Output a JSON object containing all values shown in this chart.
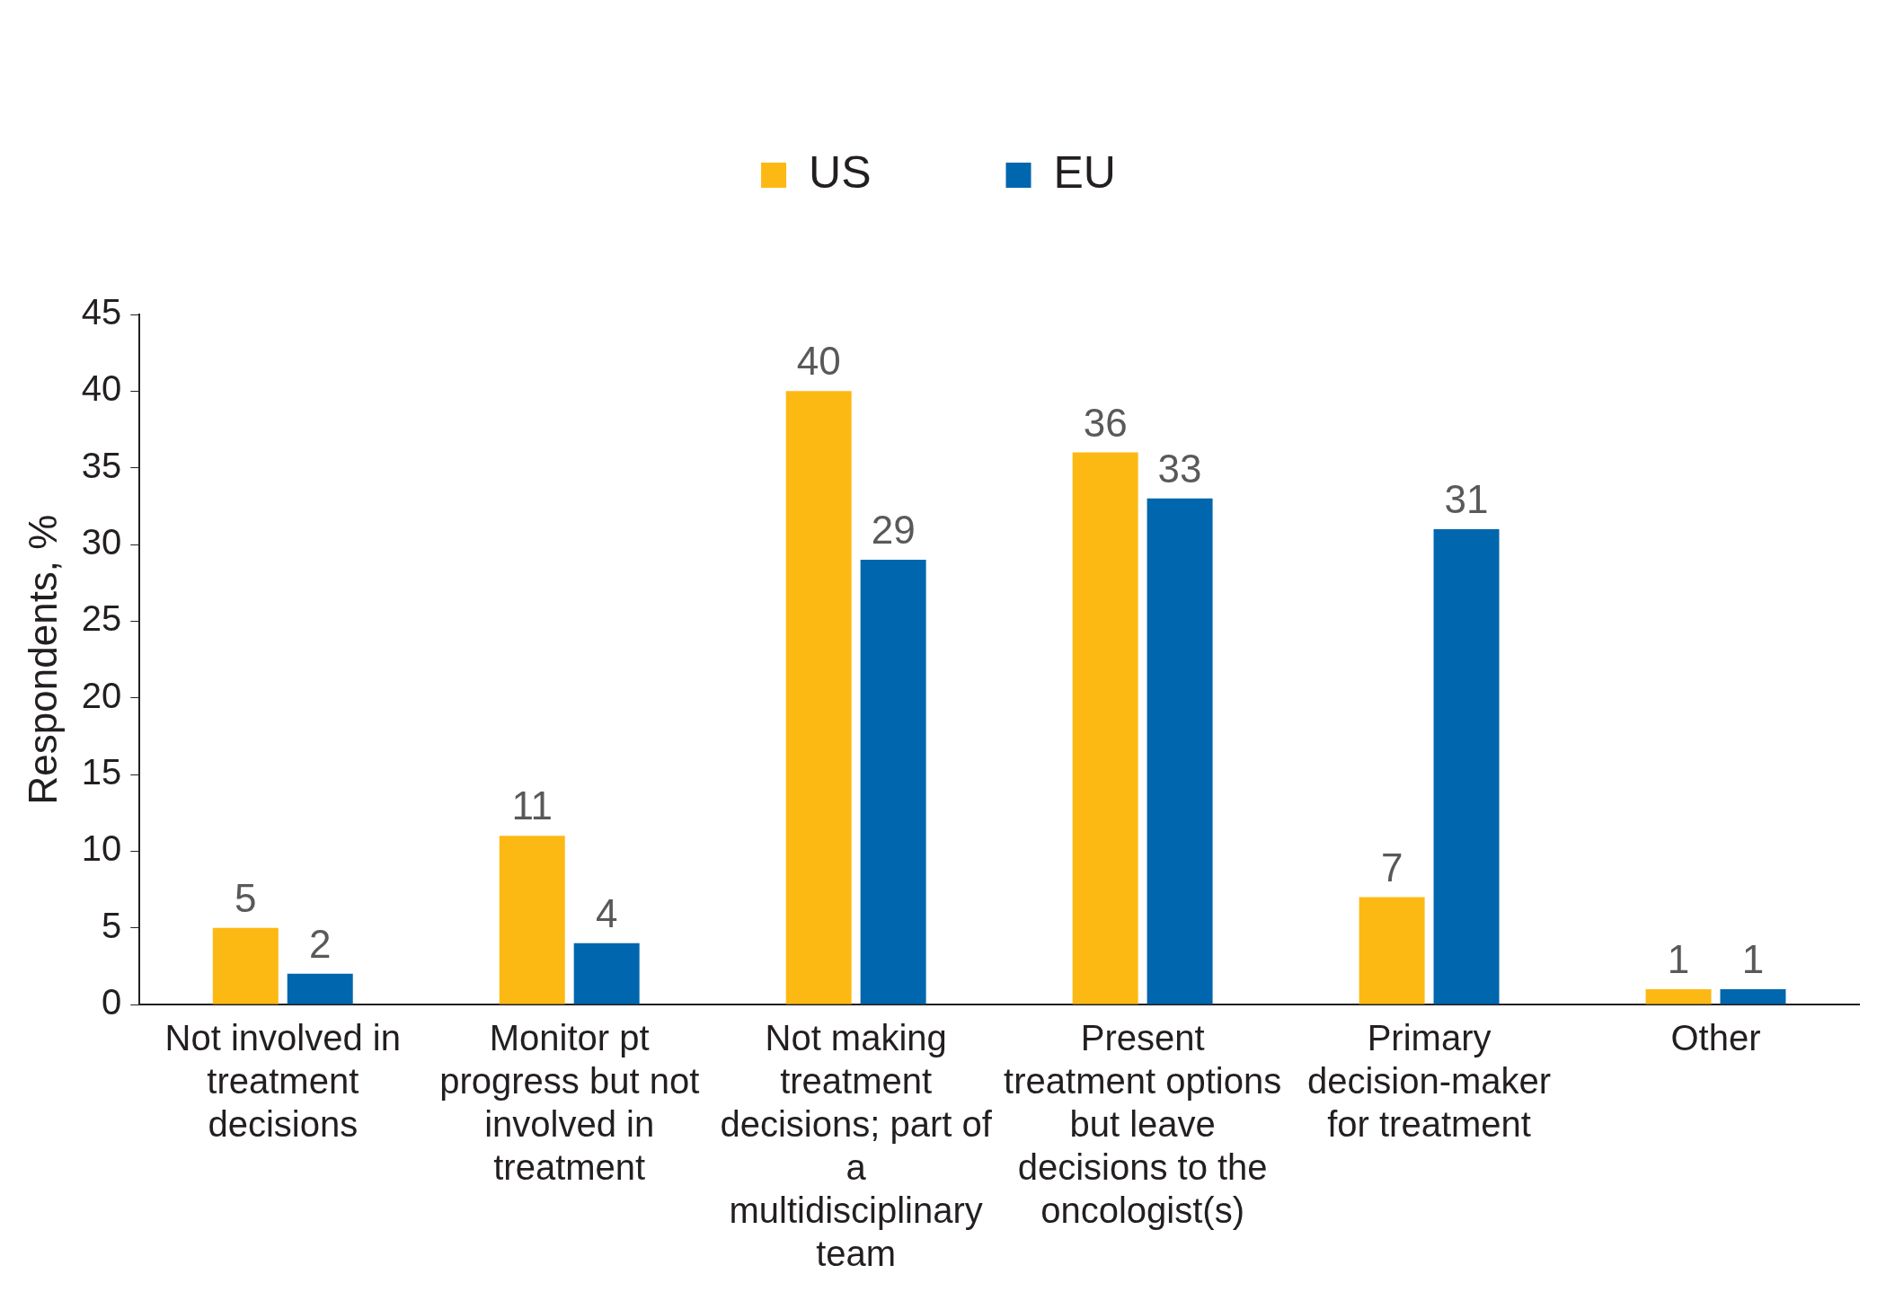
{
  "chart_data": {
    "type": "bar",
    "ylabel": "Respondents, %",
    "categories": [
      "Not involved in treatment decisions",
      "Monitor pt progress but not involved in treatment",
      "Not making treatment decisions; part of a multidisciplinary team",
      "Present treatment options but leave decisions to the oncologist(s)",
      "Primary decision-maker for treatment",
      "Other"
    ],
    "series": [
      {
        "name": "US",
        "color": "#fdb913",
        "values": [
          5,
          11,
          40,
          36,
          7,
          1
        ]
      },
      {
        "name": "EU",
        "color": "#0066ad",
        "values": [
          2,
          4,
          29,
          33,
          31,
          1
        ]
      }
    ],
    "ylim": [
      0,
      45
    ],
    "yticks": [
      0,
      5,
      10,
      15,
      20,
      25,
      30,
      35,
      40,
      45
    ],
    "grid": false,
    "legend": "top",
    "data_labels": true
  }
}
